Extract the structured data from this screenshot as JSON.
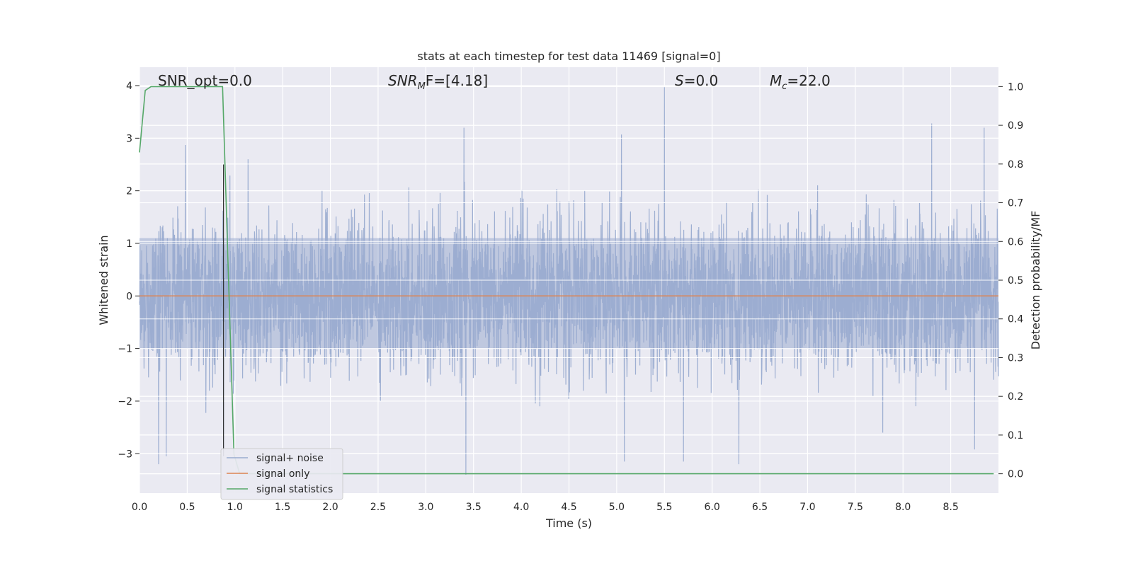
{
  "chart_data": {
    "type": "line",
    "title": "stats at each timestep for test data 11469 [signal=0]",
    "xlabel": "Time (s)",
    "ylabel": "Whitened strain",
    "ylabel_right": "Detection probability/MF",
    "xlim": [
      0.0,
      9.0
    ],
    "ylim": [
      -3.75,
      4.35
    ],
    "ylim_right": [
      -0.05,
      1.05
    ],
    "xticks": [
      0.0,
      0.5,
      1.0,
      1.5,
      2.0,
      2.5,
      3.0,
      3.5,
      4.0,
      4.5,
      5.0,
      5.5,
      6.0,
      6.5,
      7.0,
      7.5,
      8.0,
      8.5
    ],
    "xtick_labels": [
      "0.0",
      "0.5",
      "1.0",
      "1.5",
      "2.0",
      "2.5",
      "3.0",
      "3.5",
      "4.0",
      "4.5",
      "5.0",
      "5.5",
      "6.0",
      "6.5",
      "7.0",
      "7.5",
      "8.0",
      "8.5"
    ],
    "yticks": [
      -3,
      -2,
      -1,
      0,
      1,
      2,
      3,
      4
    ],
    "ytick_labels": [
      "−3",
      "−2",
      "−1",
      "0",
      "1",
      "2",
      "3",
      "4"
    ],
    "yticks_right": [
      0.0,
      0.1,
      0.2,
      0.3,
      0.4,
      0.5,
      0.6,
      0.7,
      0.8,
      0.9,
      1.0
    ],
    "ytick_labels_right": [
      "0.0",
      "0.1",
      "0.2",
      "0.3",
      "0.4",
      "0.5",
      "0.6",
      "0.7",
      "0.8",
      "0.9",
      "1.0"
    ],
    "grid": true,
    "legend_position": "lower-left",
    "annotations": {
      "snr_opt": "SNR_opt=0.0",
      "snr_mf_main": "SNR",
      "snr_mf_sub": "M",
      "snr_mf_rest": "F=[4.18]",
      "s_main": "S",
      "s_rest": "=0.0",
      "mc_main": "M",
      "mc_sub": "c",
      "mc_rest": "=22.0"
    },
    "series": [
      {
        "name": "signal+ noise",
        "color": "#9aacd0",
        "axis": "left",
        "kind": "noise",
        "x_range": [
          0.0,
          9.0
        ],
        "typical_range": [
          -1.0,
          1.1
        ],
        "notable_peaks": [
          {
            "x": 0.48,
            "y": 2.87
          },
          {
            "x": 0.88,
            "y": 2.5
          },
          {
            "x": 3.4,
            "y": 3.2
          },
          {
            "x": 5.05,
            "y": 3.07
          },
          {
            "x": 5.5,
            "y": 3.97
          },
          {
            "x": 8.3,
            "y": 3.28
          },
          {
            "x": 8.85,
            "y": 3.2
          }
        ],
        "notable_troughs": [
          {
            "x": 0.2,
            "y": -3.2
          },
          {
            "x": 0.28,
            "y": -3.05
          },
          {
            "x": 0.88,
            "y": -3.0
          },
          {
            "x": 3.42,
            "y": -3.4
          },
          {
            "x": 5.08,
            "y": -3.15
          },
          {
            "x": 5.7,
            "y": -3.15
          },
          {
            "x": 6.28,
            "y": -3.2
          },
          {
            "x": 8.75,
            "y": -2.92
          }
        ]
      },
      {
        "name": "signal only",
        "color": "#dd8452",
        "axis": "left",
        "x": [
          0.0,
          9.0
        ],
        "y": [
          0.0,
          0.0
        ]
      },
      {
        "name": "signal statistics",
        "color": "#55a868",
        "axis": "right",
        "x": [
          0.0,
          0.06,
          0.12,
          0.5,
          0.87,
          0.99,
          1.05,
          8.95
        ],
        "y": [
          0.83,
          0.99,
          1.0,
          1.0,
          1.0,
          0.05,
          0.0,
          0.0
        ]
      }
    ],
    "vertical_marker_x": 0.88
  }
}
